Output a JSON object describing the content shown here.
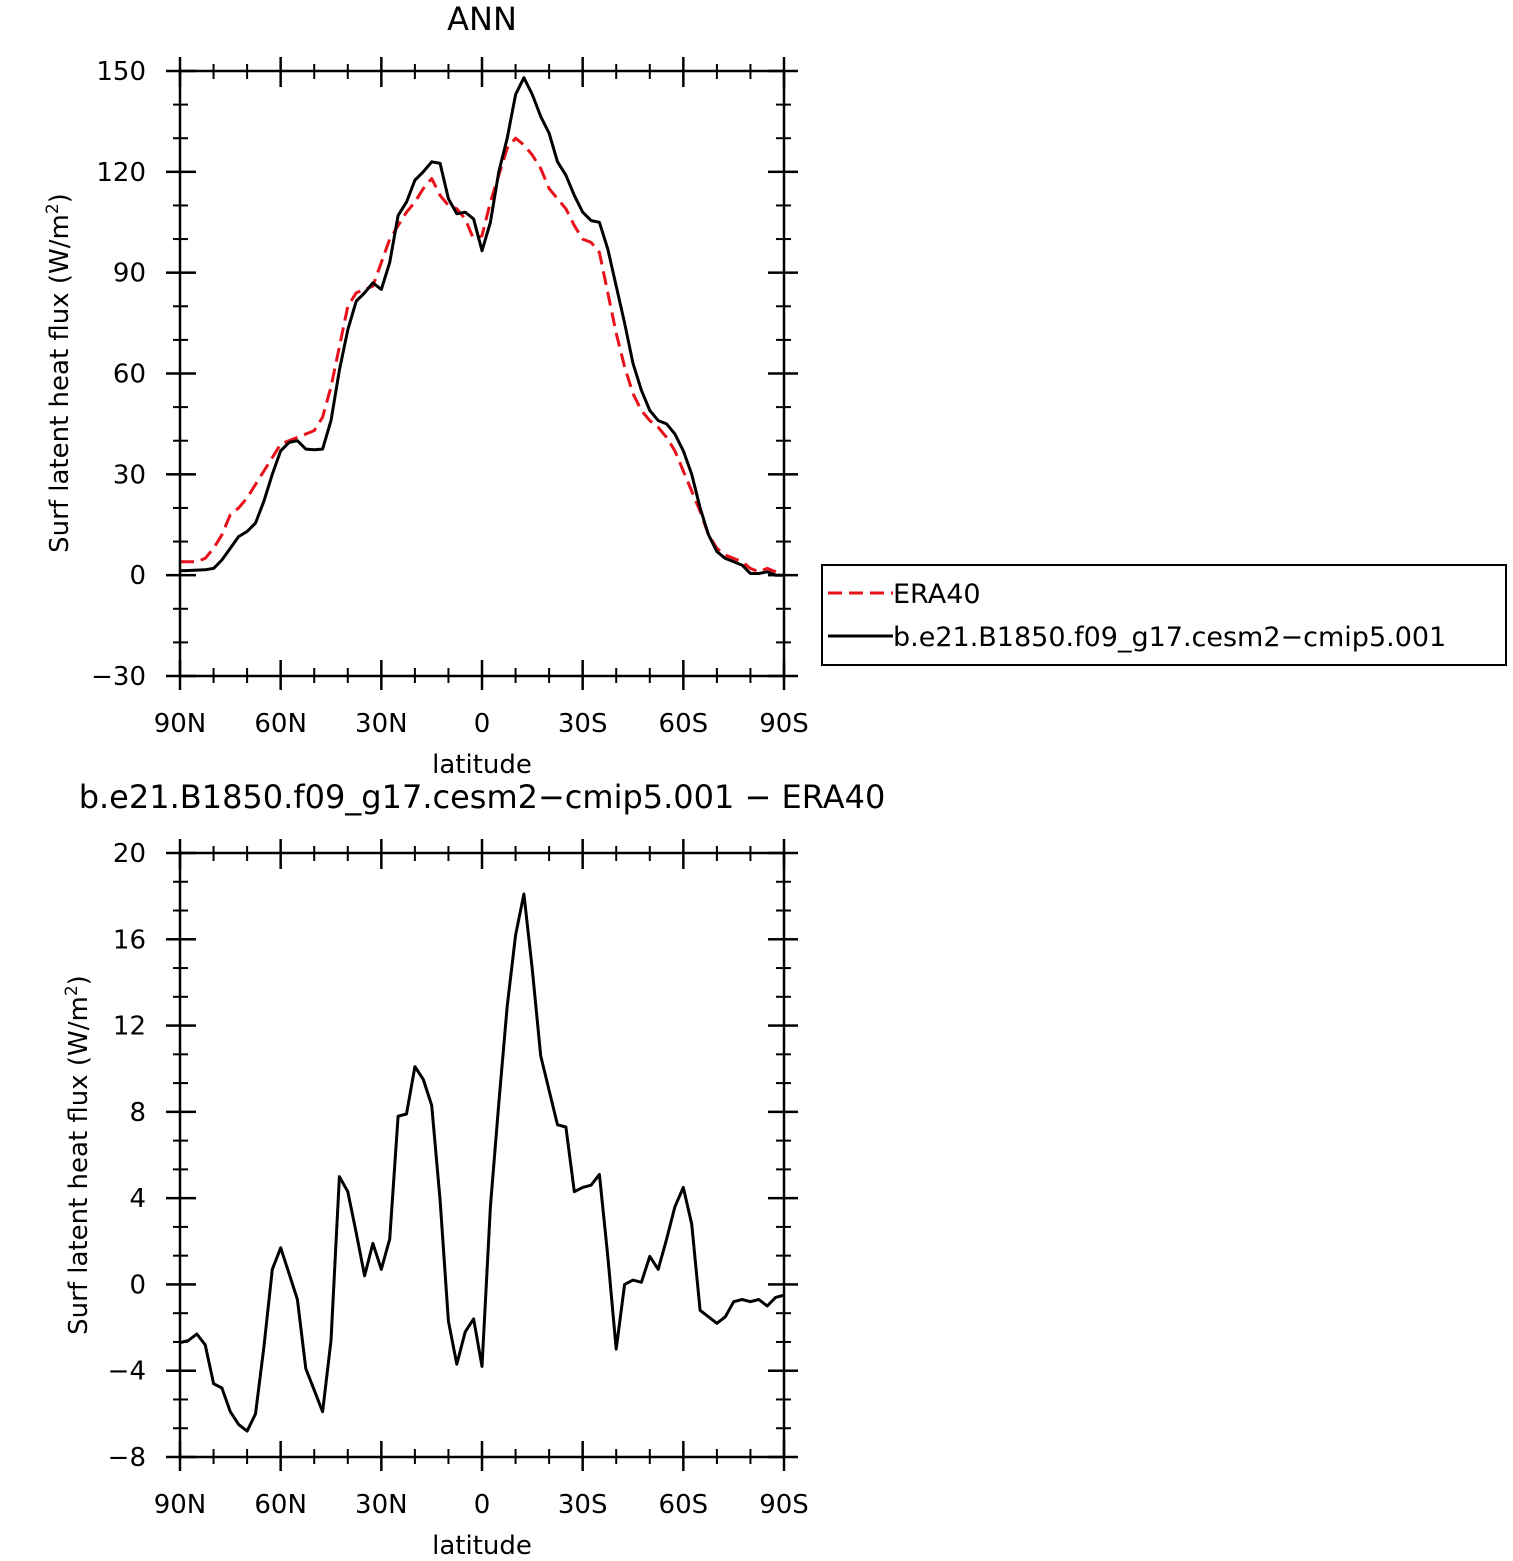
{
  "chart_data": [
    {
      "type": "line",
      "title": "ANN",
      "xlabel": "latitude",
      "ylabel": "Surf latent heat flux (W/m",
      "ylabel_sup": "2",
      "ylabel_close": ")",
      "xlim": [
        90,
        -90
      ],
      "ylim": [
        -30,
        150
      ],
      "yticks": [
        -30,
        0,
        30,
        60,
        90,
        120,
        150
      ],
      "ytick_labels": [
        "−30",
        "0",
        "30",
        "60",
        "90",
        "120",
        "150"
      ],
      "xticks": [
        90,
        60,
        30,
        0,
        -30,
        -60,
        -90
      ],
      "xtick_labels": [
        "90N",
        "60N",
        "30N",
        "0",
        "30S",
        "60S",
        "90S"
      ],
      "legend": {
        "placement": "right",
        "entries": [
          {
            "name": "ERA40",
            "color": "#e8101a",
            "dash": "dashed"
          },
          {
            "name": "b.e21.B1850.f09_g17.cesm2−cmip5.001",
            "color": "#000000",
            "dash": "solid"
          }
        ]
      },
      "series": [
        {
          "name": "ERA40",
          "color": "#e8101a",
          "x": [
            90,
            87.5,
            85,
            82.5,
            80,
            77.5,
            75,
            72.5,
            70,
            67.5,
            65,
            62.5,
            60,
            57.5,
            55,
            52.5,
            50,
            47.5,
            45,
            42.5,
            40,
            37.5,
            35,
            32.5,
            30,
            27.5,
            25,
            22.5,
            20,
            17.5,
            15,
            12.5,
            10,
            7.5,
            5,
            2.5,
            0,
            -2.5,
            -5,
            -7.5,
            -10,
            -12.5,
            -15,
            -17.5,
            -20,
            -22.5,
            -25,
            -27.5,
            -30,
            -32.5,
            -35,
            -37.5,
            -40,
            -42.5,
            -45,
            -47.5,
            -50,
            -52.5,
            -55,
            -57.5,
            -60,
            -62.5,
            -65,
            -67.5,
            -70,
            -72.5,
            -75,
            -77.5,
            -80,
            -82.5,
            -85,
            -87.5,
            -90
          ],
          "values": [
            4,
            4,
            4,
            5,
            8,
            12,
            18,
            20,
            23,
            27,
            31,
            35,
            39,
            40,
            41,
            42,
            43,
            47,
            56,
            68,
            80,
            84,
            85,
            86,
            93,
            100,
            104,
            108,
            111,
            115,
            118,
            113,
            110,
            109,
            106,
            100,
            101,
            111,
            119,
            127,
            130,
            128,
            125,
            121,
            115,
            112,
            109,
            104,
            100,
            99,
            96,
            84,
            72,
            62,
            54,
            49,
            46,
            44,
            41,
            37,
            31,
            25,
            19,
            12,
            8,
            6,
            5,
            4,
            2,
            1,
            2,
            1,
            0
          ]
        },
        {
          "name": "b.e21.B1850.f09_g17.cesm2−cmip5.001",
          "color": "#000000",
          "x": [
            90,
            87.5,
            85,
            82.5,
            80,
            77.5,
            75,
            72.5,
            70,
            67.5,
            65,
            62.5,
            60,
            57.5,
            55,
            52.5,
            50,
            47.5,
            45,
            42.5,
            40,
            37.5,
            35,
            32.5,
            30,
            27.5,
            25,
            22.5,
            20,
            17.5,
            15,
            12.5,
            10,
            7.5,
            5,
            2.5,
            0,
            -2.5,
            -5,
            -7.5,
            -10,
            -12.5,
            -15,
            -17.5,
            -20,
            -22.5,
            -25,
            -27.5,
            -30,
            -32.5,
            -35,
            -37.5,
            -40,
            -42.5,
            -45,
            -47.5,
            -50,
            -52.5,
            -55,
            -57.5,
            -60,
            -62.5,
            -65,
            -67.5,
            -70,
            -72.5,
            -75,
            -77.5,
            -80,
            -82.5,
            -85,
            -87.5,
            -90
          ],
          "values": [
            1.3,
            1.4,
            1.5,
            1.6,
            2,
            4.5,
            8,
            11.5,
            13,
            15.5,
            22,
            30,
            37,
            39.5,
            40,
            37.5,
            37.3,
            37.5,
            46,
            61,
            73,
            81.5,
            84,
            87,
            85,
            93,
            107,
            111,
            117.5,
            120,
            123,
            122.5,
            112,
            107.5,
            108,
            106,
            96.5,
            105,
            120,
            130,
            143,
            148,
            143,
            136.5,
            131.5,
            123,
            119,
            113,
            108,
            105.5,
            105,
            97,
            86,
            75,
            63,
            55,
            49,
            46,
            45,
            42,
            37,
            30,
            20,
            12,
            7,
            5,
            4,
            3,
            0.5,
            0.5,
            1,
            0,
            0
          ]
        }
      ]
    },
    {
      "type": "line",
      "title": "b.e21.B1850.f09_g17.cesm2−cmip5.001  −  ERA40",
      "xlabel": "latitude",
      "ylabel": "Surf latent heat flux (W/m",
      "ylabel_sup": "2",
      "ylabel_close": ")",
      "xlim": [
        90,
        -90
      ],
      "ylim": [
        -8,
        20
      ],
      "yticks": [
        -8,
        -4,
        0,
        4,
        8,
        12,
        16,
        20
      ],
      "ytick_labels": [
        "−8",
        "−4",
        "0",
        "4",
        "8",
        "12",
        "16",
        "20"
      ],
      "xticks": [
        90,
        60,
        30,
        0,
        -30,
        -60,
        -90
      ],
      "xtick_labels": [
        "90N",
        "60N",
        "30N",
        "0",
        "30S",
        "60S",
        "90S"
      ],
      "series": [
        {
          "color": "#000000",
          "x": [
            90,
            87.5,
            85,
            82.5,
            80,
            77.5,
            75,
            72.5,
            70,
            67.5,
            65,
            62.5,
            60,
            57.5,
            55,
            52.5,
            50,
            47.5,
            45,
            42.5,
            40,
            37.5,
            35,
            32.5,
            30,
            27.5,
            25,
            22.5,
            20,
            17.5,
            15,
            12.5,
            10,
            7.5,
            5,
            2.5,
            0,
            -2.5,
            -5,
            -7.5,
            -10,
            -12.5,
            -15,
            -17.5,
            -20,
            -22.5,
            -25,
            -27.5,
            -30,
            -32.5,
            -35,
            -37.5,
            -40,
            -42.5,
            -45,
            -47.5,
            -50,
            -52.5,
            -55,
            -57.5,
            -60,
            -62.5,
            -65,
            -67.5,
            -70,
            -72.5,
            -75,
            -77.5,
            -80,
            -82.5,
            -85,
            -87.5,
            -90
          ],
          "values": [
            -2.7,
            -2.6,
            -2.3,
            -2.8,
            -4.6,
            -4.8,
            -5.9,
            -6.5,
            -6.8,
            -6.0,
            -2.9,
            0.7,
            1.7,
            0.5,
            -0.7,
            -3.9,
            -4.9,
            -5.9,
            -2.6,
            5.0,
            4.3,
            2.4,
            0.4,
            1.9,
            0.7,
            2.1,
            7.8,
            7.9,
            10.1,
            9.5,
            8.3,
            3.9,
            -1.7,
            -3.7,
            -2.2,
            -1.6,
            -3.8,
            3.6,
            8.4,
            12.9,
            16.2,
            18.1,
            14.6,
            10.6,
            9.0,
            7.4,
            7.3,
            4.3,
            4.5,
            4.6,
            5.1,
            1.3,
            -3.0,
            0.0,
            0.2,
            0.1,
            1.3,
            0.7,
            2.1,
            3.6,
            4.5,
            2.8,
            -1.2,
            -1.5,
            -1.8,
            -1.5,
            -0.8,
            -0.7,
            -0.8,
            -0.7,
            -1.0,
            -0.6,
            -0.5
          ]
        }
      ]
    }
  ]
}
